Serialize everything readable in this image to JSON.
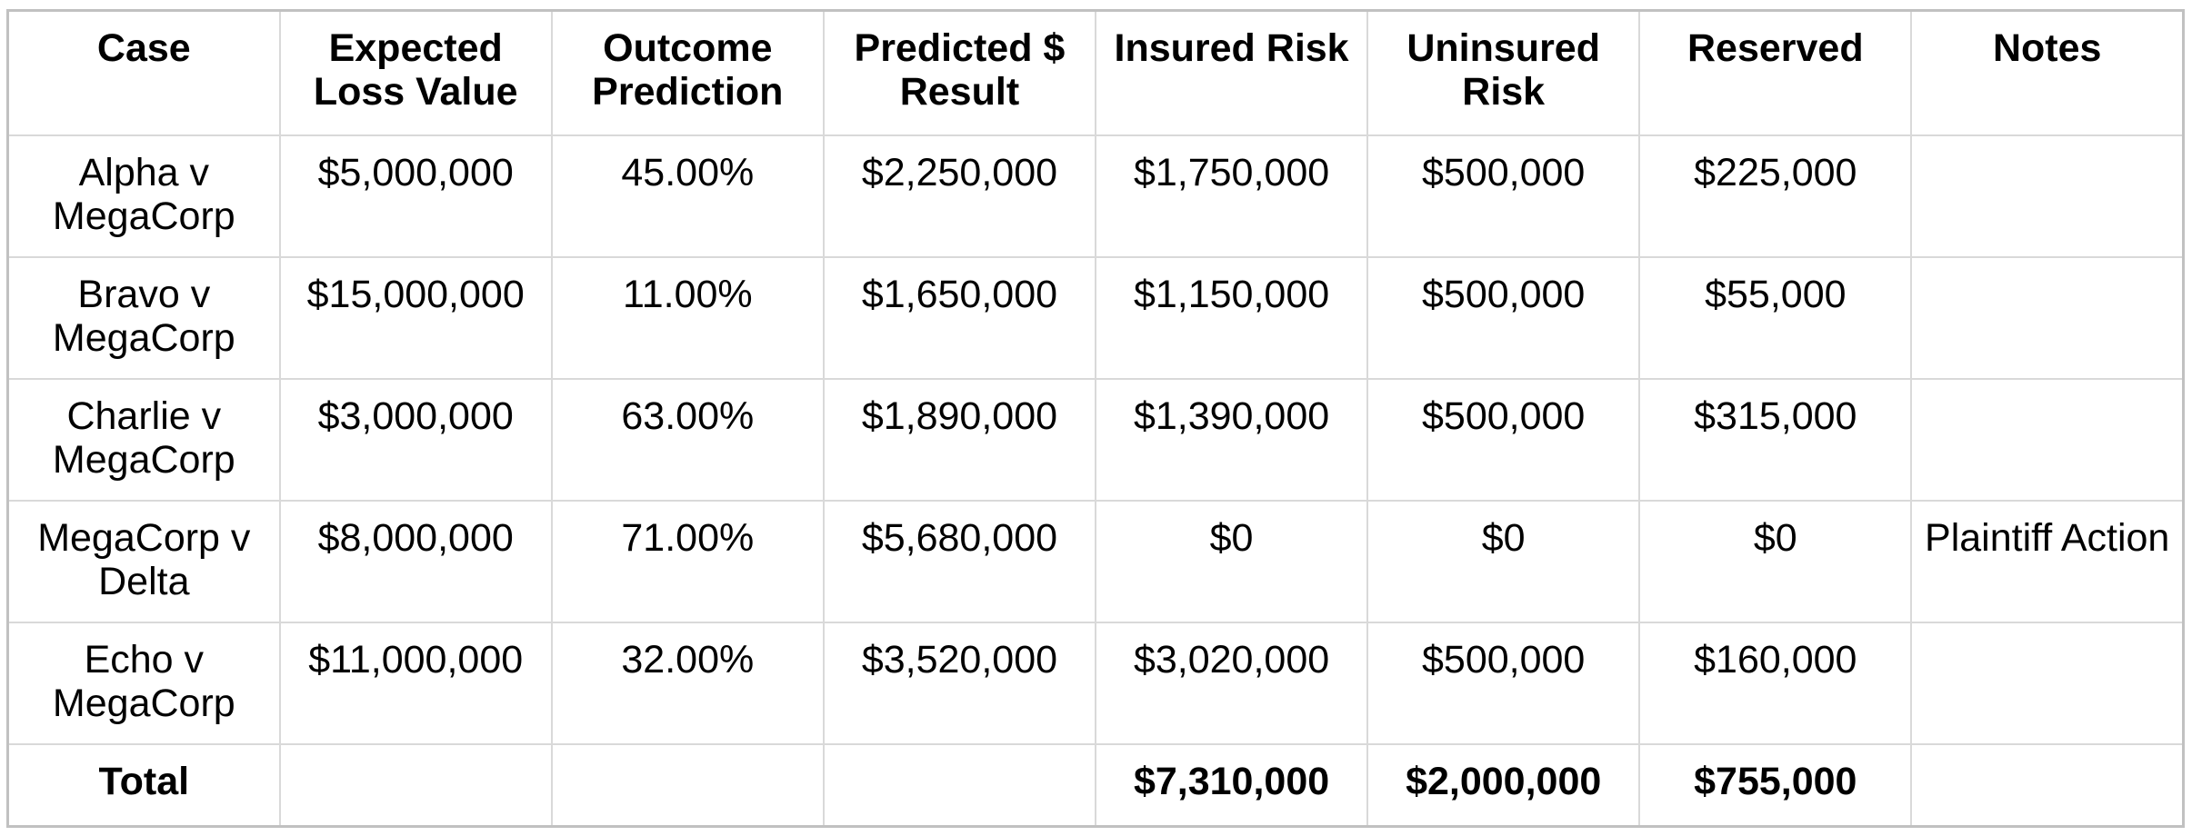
{
  "colors": {
    "background": "#ffffff",
    "text": "#000000",
    "gridline": "#d9d9d9",
    "outer_border": "#c1c1c1"
  },
  "chart_data": {
    "type": "table",
    "columns": [
      "Case",
      "Expected Loss Value",
      "Outcome Prediction",
      "Predicted $ Result",
      "Insured Risk",
      "Uninsured Risk",
      "Reserved",
      "Notes"
    ],
    "rows": [
      [
        "Alpha v MegaCorp",
        "$5,000,000",
        "45.00%",
        "$2,250,000",
        "$1,750,000",
        "$500,000",
        "$225,000",
        ""
      ],
      [
        "Bravo v MegaCorp",
        "$15,000,000",
        "11.00%",
        "$1,650,000",
        "$1,150,000",
        "$500,000",
        "$55,000",
        ""
      ],
      [
        "Charlie v MegaCorp",
        "$3,000,000",
        "63.00%",
        "$1,890,000",
        "$1,390,000",
        "$500,000",
        "$315,000",
        ""
      ],
      [
        "MegaCorp v Delta",
        "$8,000,000",
        "71.00%",
        "$5,680,000",
        "$0",
        "$0",
        "$0",
        "Plaintiff Action"
      ],
      [
        "Echo v MegaCorp",
        "$11,000,000",
        "32.00%",
        "$3,520,000",
        "$3,020,000",
        "$500,000",
        "$160,000",
        ""
      ]
    ],
    "total_row": [
      "Total",
      "",
      "",
      "",
      "$7,310,000",
      "$2,000,000",
      "$755,000",
      ""
    ]
  }
}
